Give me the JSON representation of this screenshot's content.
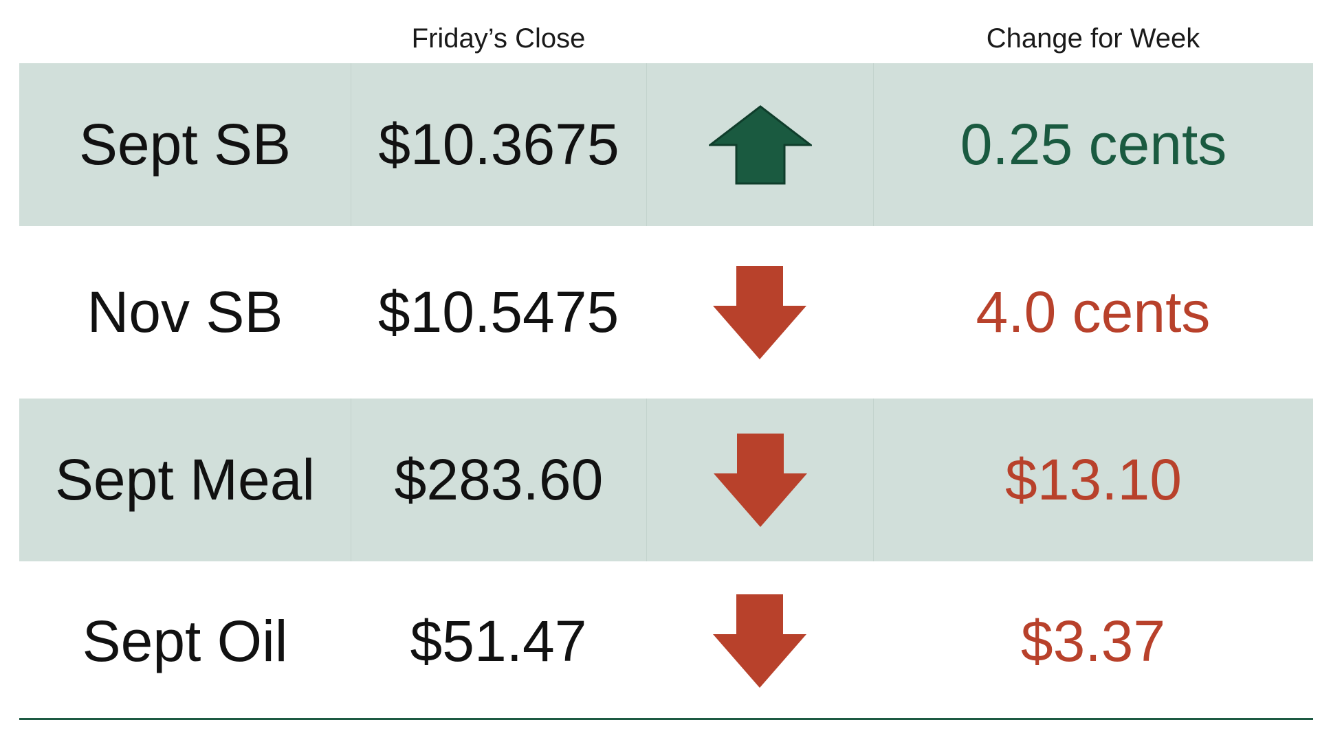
{
  "header": {
    "close_label": "Friday’s Close",
    "change_label": "Change for Week"
  },
  "colors": {
    "row_shade": "#d1dfda",
    "up": "#1a5a40",
    "down": "#b8412b",
    "rule": "#1d5a43"
  },
  "rows": [
    {
      "name": "Sept SB",
      "close": "$10.3675",
      "direction": "up",
      "arrow_icon": "arrow-up-icon",
      "change": "0.25 cents"
    },
    {
      "name": "Nov SB",
      "close": "$10.5475",
      "direction": "down",
      "arrow_icon": "arrow-down-icon",
      "change": "4.0 cents"
    },
    {
      "name": "Sept Meal",
      "close": "$283.60",
      "direction": "down",
      "arrow_icon": "arrow-down-icon",
      "change": "$13.10"
    },
    {
      "name": "Sept Oil",
      "close": "$51.47",
      "direction": "down",
      "arrow_icon": "arrow-down-icon",
      "change": "$3.37"
    }
  ]
}
